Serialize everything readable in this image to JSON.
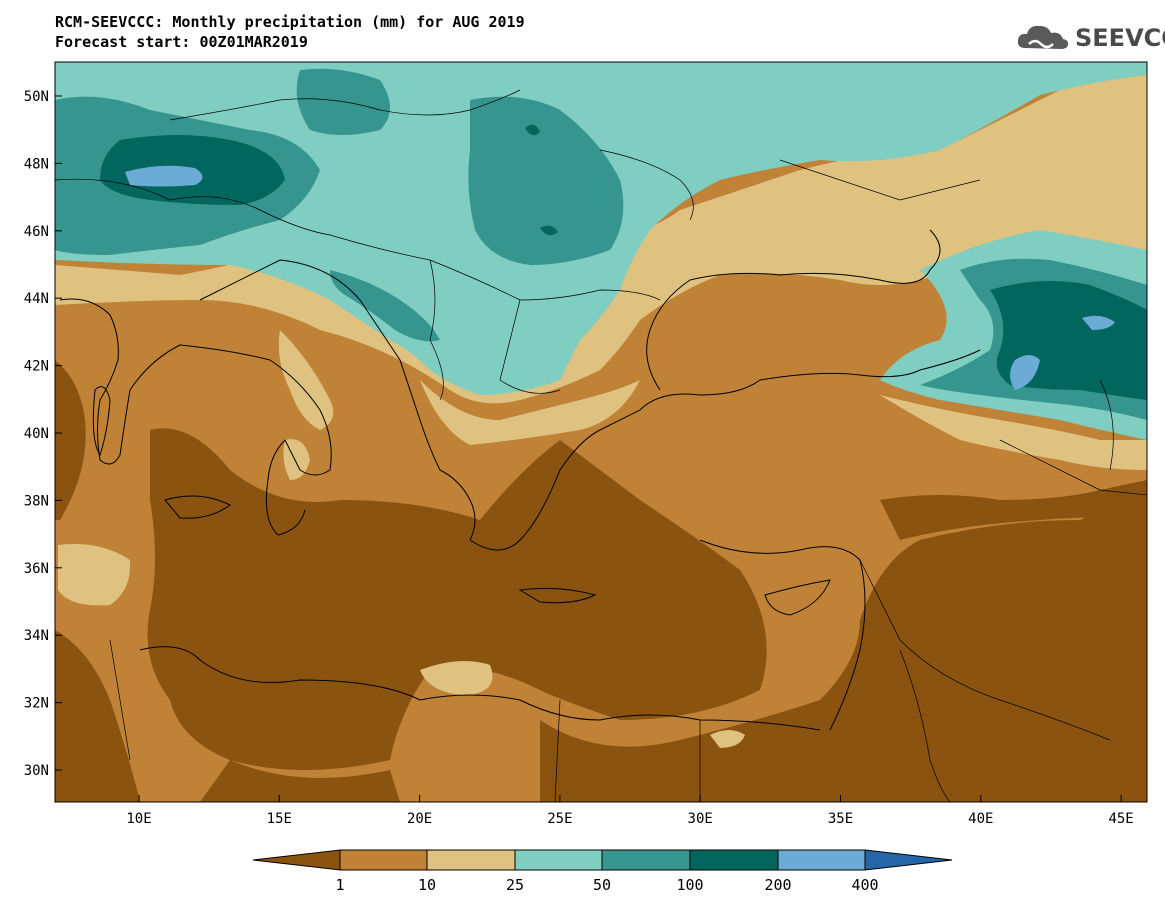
{
  "title": {
    "line1": "RCM-SEEVCCC: Monthly precipitation (mm) for AUG 2019",
    "line2": "Forecast start: 00Z01MAR2019"
  },
  "logo": {
    "text": "SEEVCCC",
    "icon": "cloud-icon"
  },
  "map": {
    "lat_ticks": [
      "50N",
      "48N",
      "46N",
      "44N",
      "42N",
      "40N",
      "38N",
      "36N",
      "34N",
      "32N",
      "30N"
    ],
    "lon_ticks": [
      "10E",
      "15E",
      "20E",
      "25E",
      "30E",
      "35E",
      "40E",
      "45E"
    ],
    "colors": {
      "lt1": "#8a5310",
      "c1_10": "#bf8236",
      "c10_25": "#dfc27f",
      "c25_50": "#80cdc1",
      "c50_100": "#36958e",
      "c100_200": "#01665e",
      "c200_400": "#6babd6",
      "gt400": "#2466a8"
    }
  },
  "colorbar": {
    "labels": [
      "1",
      "10",
      "25",
      "50",
      "100",
      "200",
      "400"
    ]
  }
}
